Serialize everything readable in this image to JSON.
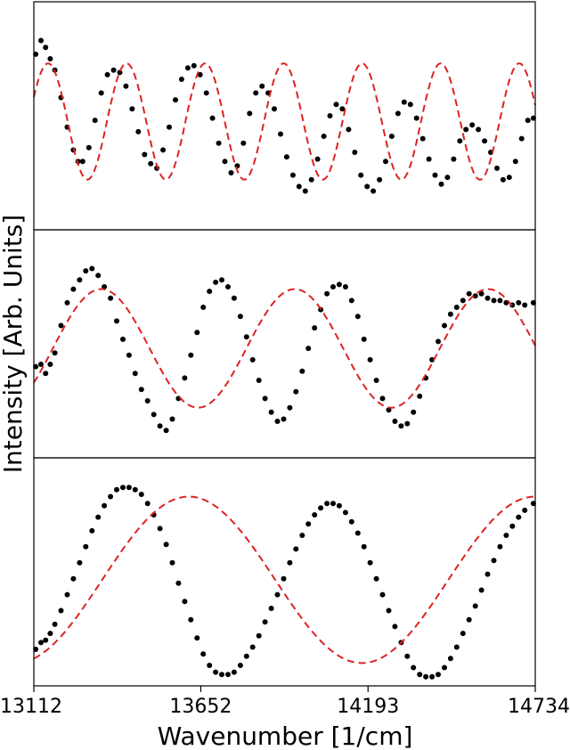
{
  "chart_data": {
    "type": "scatter",
    "layout": "three vertically stacked panels sharing a common x axis",
    "xlabel": "Wavenumber [1/cm]",
    "ylabel": "Intensity [Arb. Units]",
    "xlim": [
      13112,
      14734
    ],
    "xticks": [
      13112,
      13652,
      14193,
      14734
    ],
    "xtick_labels": [
      "13112",
      "13652",
      "14193",
      "14734"
    ],
    "y_ticks_shown": false,
    "grid": false,
    "legend": "none",
    "series_style": {
      "measured": {
        "marker": "dot",
        "color": "#000000"
      },
      "fit": {
        "line": "dashed",
        "color": "#dd2222"
      }
    },
    "panels": [
      {
        "ylim": [
          0,
          1
        ],
        "fit": {
          "period_cm": 254,
          "peak_x": 13412,
          "min": 0.22,
          "max": 0.73
        },
        "measured": [
          [
            13118,
            0.77
          ],
          [
            13135,
            0.83
          ],
          [
            13150,
            0.8
          ],
          [
            13165,
            0.75
          ],
          [
            13180,
            0.7
          ],
          [
            13200,
            0.58
          ],
          [
            13220,
            0.45
          ],
          [
            13240,
            0.35
          ],
          [
            13255,
            0.3
          ],
          [
            13270,
            0.3
          ],
          [
            13290,
            0.36
          ],
          [
            13310,
            0.48
          ],
          [
            13330,
            0.6
          ],
          [
            13350,
            0.68
          ],
          [
            13370,
            0.7
          ],
          [
            13390,
            0.69
          ],
          [
            13410,
            0.63
          ],
          [
            13430,
            0.53
          ],
          [
            13450,
            0.43
          ],
          [
            13470,
            0.33
          ],
          [
            13490,
            0.29
          ],
          [
            13510,
            0.27
          ],
          [
            13530,
            0.35
          ],
          [
            13550,
            0.45
          ],
          [
            13570,
            0.57
          ],
          [
            13590,
            0.66
          ],
          [
            13610,
            0.71
          ],
          [
            13630,
            0.72
          ],
          [
            13650,
            0.68
          ],
          [
            13670,
            0.6
          ],
          [
            13690,
            0.49
          ],
          [
            13710,
            0.38
          ],
          [
            13730,
            0.3
          ],
          [
            13750,
            0.25
          ],
          [
            13770,
            0.28
          ],
          [
            13790,
            0.38
          ],
          [
            13810,
            0.51
          ],
          [
            13830,
            0.6
          ],
          [
            13850,
            0.63
          ],
          [
            13870,
            0.6
          ],
          [
            13890,
            0.53
          ],
          [
            13910,
            0.42
          ],
          [
            13930,
            0.32
          ],
          [
            13950,
            0.24
          ],
          [
            13970,
            0.19
          ],
          [
            13990,
            0.17
          ],
          [
            14010,
            0.22
          ],
          [
            14030,
            0.31
          ],
          [
            14050,
            0.41
          ],
          [
            14070,
            0.5
          ],
          [
            14090,
            0.55
          ],
          [
            14110,
            0.53
          ],
          [
            14130,
            0.44
          ],
          [
            14150,
            0.34
          ],
          [
            14170,
            0.24
          ],
          [
            14190,
            0.19
          ],
          [
            14210,
            0.17
          ],
          [
            14230,
            0.22
          ],
          [
            14250,
            0.3
          ],
          [
            14270,
            0.41
          ],
          [
            14290,
            0.51
          ],
          [
            14310,
            0.56
          ],
          [
            14330,
            0.55
          ],
          [
            14350,
            0.49
          ],
          [
            14370,
            0.4
          ],
          [
            14390,
            0.31
          ],
          [
            14410,
            0.24
          ],
          [
            14430,
            0.2
          ],
          [
            14450,
            0.23
          ],
          [
            14470,
            0.31
          ],
          [
            14490,
            0.39
          ],
          [
            14510,
            0.44
          ],
          [
            14530,
            0.46
          ],
          [
            14550,
            0.44
          ],
          [
            14570,
            0.39
          ],
          [
            14590,
            0.34
          ],
          [
            14610,
            0.27
          ],
          [
            14630,
            0.22
          ],
          [
            14650,
            0.23
          ],
          [
            14670,
            0.3
          ],
          [
            14690,
            0.4
          ],
          [
            14710,
            0.48
          ],
          [
            14728,
            0.49
          ]
        ]
      },
      {
        "ylim": [
          0,
          1
        ],
        "fit": {
          "period_cm": 626,
          "peak_x": 13330,
          "min": 0.22,
          "max": 0.74
        },
        "measured": [
          [
            13118,
            0.4
          ],
          [
            13135,
            0.41
          ],
          [
            13150,
            0.37
          ],
          [
            13165,
            0.41
          ],
          [
            13180,
            0.46
          ],
          [
            13200,
            0.58
          ],
          [
            13220,
            0.68
          ],
          [
            13240,
            0.74
          ],
          [
            13260,
            0.78
          ],
          [
            13280,
            0.82
          ],
          [
            13300,
            0.83
          ],
          [
            13320,
            0.8
          ],
          [
            13340,
            0.75
          ],
          [
            13360,
            0.7
          ],
          [
            13380,
            0.6
          ],
          [
            13400,
            0.52
          ],
          [
            13420,
            0.45
          ],
          [
            13440,
            0.37
          ],
          [
            13460,
            0.3
          ],
          [
            13480,
            0.25
          ],
          [
            13500,
            0.19
          ],
          [
            13520,
            0.14
          ],
          [
            13540,
            0.12
          ],
          [
            13560,
            0.17
          ],
          [
            13580,
            0.26
          ],
          [
            13600,
            0.35
          ],
          [
            13620,
            0.45
          ],
          [
            13640,
            0.55
          ],
          [
            13660,
            0.66
          ],
          [
            13680,
            0.73
          ],
          [
            13700,
            0.77
          ],
          [
            13720,
            0.78
          ],
          [
            13740,
            0.75
          ],
          [
            13760,
            0.7
          ],
          [
            13780,
            0.62
          ],
          [
            13800,
            0.53
          ],
          [
            13820,
            0.43
          ],
          [
            13840,
            0.34
          ],
          [
            13860,
            0.26
          ],
          [
            13880,
            0.2
          ],
          [
            13900,
            0.16
          ],
          [
            13920,
            0.17
          ],
          [
            13940,
            0.22
          ],
          [
            13960,
            0.29
          ],
          [
            13980,
            0.38
          ],
          [
            14000,
            0.48
          ],
          [
            14020,
            0.57
          ],
          [
            14040,
            0.65
          ],
          [
            14060,
            0.72
          ],
          [
            14080,
            0.75
          ],
          [
            14100,
            0.76
          ],
          [
            14120,
            0.75
          ],
          [
            14140,
            0.69
          ],
          [
            14160,
            0.62
          ],
          [
            14180,
            0.52
          ],
          [
            14200,
            0.43
          ],
          [
            14220,
            0.34
          ],
          [
            14240,
            0.26
          ],
          [
            14260,
            0.21
          ],
          [
            14280,
            0.16
          ],
          [
            14300,
            0.14
          ],
          [
            14320,
            0.15
          ],
          [
            14340,
            0.2
          ],
          [
            14360,
            0.27
          ],
          [
            14380,
            0.35
          ],
          [
            14400,
            0.43
          ],
          [
            14420,
            0.51
          ],
          [
            14440,
            0.58
          ],
          [
            14460,
            0.63
          ],
          [
            14480,
            0.66
          ],
          [
            14500,
            0.69
          ],
          [
            14520,
            0.72
          ],
          [
            14540,
            0.71
          ],
          [
            14560,
            0.72
          ],
          [
            14580,
            0.7
          ],
          [
            14600,
            0.69
          ],
          [
            14620,
            0.69
          ],
          [
            14640,
            0.68
          ],
          [
            14660,
            0.67
          ],
          [
            14680,
            0.68
          ],
          [
            14700,
            0.67
          ],
          [
            14728,
            0.68
          ]
        ]
      },
      {
        "ylim": [
          0,
          1
        ],
        "fit": {
          "period_cm": 1120,
          "peak_x": 13613,
          "min": 0.1,
          "max": 0.83
        },
        "measured": [
          [
            13118,
            0.16
          ],
          [
            13135,
            0.19
          ],
          [
            13150,
            0.2
          ],
          [
            13165,
            0.23
          ],
          [
            13180,
            0.27
          ],
          [
            13200,
            0.33
          ],
          [
            13220,
            0.4
          ],
          [
            13240,
            0.47
          ],
          [
            13260,
            0.54
          ],
          [
            13280,
            0.61
          ],
          [
            13300,
            0.68
          ],
          [
            13320,
            0.74
          ],
          [
            13340,
            0.79
          ],
          [
            13360,
            0.83
          ],
          [
            13380,
            0.86
          ],
          [
            13400,
            0.87
          ],
          [
            13420,
            0.87
          ],
          [
            13440,
            0.86
          ],
          [
            13460,
            0.84
          ],
          [
            13480,
            0.8
          ],
          [
            13500,
            0.75
          ],
          [
            13520,
            0.69
          ],
          [
            13540,
            0.62
          ],
          [
            13560,
            0.54
          ],
          [
            13580,
            0.45
          ],
          [
            13600,
            0.37
          ],
          [
            13620,
            0.29
          ],
          [
            13640,
            0.21
          ],
          [
            13660,
            0.14
          ],
          [
            13680,
            0.09
          ],
          [
            13700,
            0.06
          ],
          [
            13720,
            0.05
          ],
          [
            13740,
            0.05
          ],
          [
            13760,
            0.06
          ],
          [
            13780,
            0.09
          ],
          [
            13800,
            0.13
          ],
          [
            13820,
            0.17
          ],
          [
            13840,
            0.22
          ],
          [
            13860,
            0.28
          ],
          [
            13880,
            0.34
          ],
          [
            13900,
            0.4
          ],
          [
            13920,
            0.47
          ],
          [
            13940,
            0.54
          ],
          [
            13960,
            0.6
          ],
          [
            13980,
            0.66
          ],
          [
            14000,
            0.71
          ],
          [
            14020,
            0.75
          ],
          [
            14040,
            0.78
          ],
          [
            14060,
            0.8
          ],
          [
            14080,
            0.8
          ],
          [
            14100,
            0.79
          ],
          [
            14120,
            0.76
          ],
          [
            14140,
            0.72
          ],
          [
            14160,
            0.67
          ],
          [
            14180,
            0.61
          ],
          [
            14200,
            0.54
          ],
          [
            14220,
            0.47
          ],
          [
            14240,
            0.4
          ],
          [
            14260,
            0.33
          ],
          [
            14280,
            0.26
          ],
          [
            14300,
            0.19
          ],
          [
            14320,
            0.13
          ],
          [
            14340,
            0.08
          ],
          [
            14360,
            0.05
          ],
          [
            14380,
            0.04
          ],
          [
            14400,
            0.04
          ],
          [
            14420,
            0.05
          ],
          [
            14440,
            0.08
          ],
          [
            14460,
            0.12
          ],
          [
            14480,
            0.17
          ],
          [
            14500,
            0.23
          ],
          [
            14520,
            0.29
          ],
          [
            14540,
            0.35
          ],
          [
            14560,
            0.42
          ],
          [
            14580,
            0.49
          ],
          [
            14600,
            0.55
          ],
          [
            14620,
            0.61
          ],
          [
            14640,
            0.66
          ],
          [
            14660,
            0.7
          ],
          [
            14680,
            0.74
          ],
          [
            14700,
            0.77
          ],
          [
            14728,
            0.8
          ]
        ]
      }
    ]
  }
}
